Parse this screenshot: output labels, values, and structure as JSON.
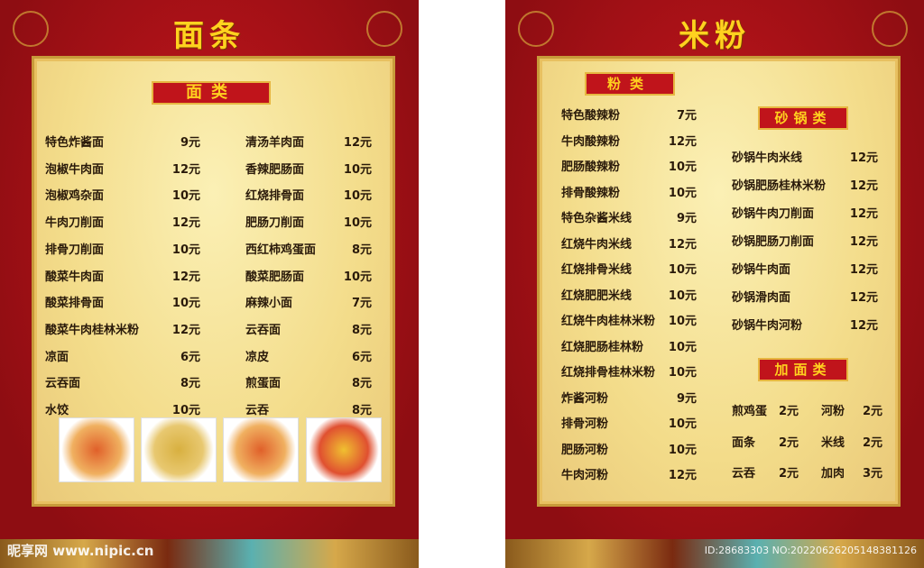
{
  "left": {
    "title": "面条",
    "section": "面类",
    "col1": [
      [
        "特色炸酱面",
        "9元"
      ],
      [
        "泡椒牛肉面",
        "12元"
      ],
      [
        "泡椒鸡杂面",
        "10元"
      ],
      [
        "牛肉刀削面",
        "12元"
      ],
      [
        "排骨刀削面",
        "10元"
      ],
      [
        "酸菜牛肉面",
        "12元"
      ],
      [
        "酸菜排骨面",
        "10元"
      ],
      [
        "酸菜牛肉桂林米粉",
        "12元"
      ],
      [
        "凉面",
        "6元"
      ],
      [
        "云吞面",
        "8元"
      ],
      [
        "水饺",
        "10元"
      ]
    ],
    "col2": [
      [
        "清汤羊肉面",
        "12元"
      ],
      [
        "香辣肥肠面",
        "10元"
      ],
      [
        "红烧排骨面",
        "10元"
      ],
      [
        "肥肠刀削面",
        "10元"
      ],
      [
        "西红柿鸡蛋面",
        "8元"
      ],
      [
        "酸菜肥肠面",
        "10元"
      ],
      [
        "麻辣小面",
        "7元"
      ],
      [
        "云吞面",
        "8元"
      ],
      [
        "凉皮",
        "6元"
      ],
      [
        "煎蛋面",
        "8元"
      ],
      [
        "云吞",
        "8元"
      ]
    ]
  },
  "right": {
    "title": "米粉",
    "section1": "粉类",
    "section2": "砂锅类",
    "section3": "加面类",
    "fen": [
      [
        "特色酸辣粉",
        "7元"
      ],
      [
        "牛肉酸辣粉",
        "12元"
      ],
      [
        "肥肠酸辣粉",
        "10元"
      ],
      [
        "排骨酸辣粉",
        "10元"
      ],
      [
        "特色杂酱米线",
        "9元"
      ],
      [
        "红烧牛肉米线",
        "12元"
      ],
      [
        "红烧排骨米线",
        "10元"
      ],
      [
        "红烧肥肥米线",
        "10元"
      ],
      [
        "红烧牛肉桂林米粉",
        "10元"
      ],
      [
        "红烧肥肠桂林粉",
        "10元"
      ],
      [
        "红烧排骨桂林米粉",
        "10元"
      ],
      [
        "炸酱河粉",
        "9元"
      ],
      [
        "排骨河粉",
        "10元"
      ],
      [
        "肥肠河粉",
        "10元"
      ],
      [
        "牛肉河粉",
        "12元"
      ]
    ],
    "shaguo": [
      [
        "砂锅牛肉米线",
        "12元"
      ],
      [
        "砂锅肥肠桂林米粉",
        "12元"
      ],
      [
        "砂锅牛肉刀削面",
        "12元"
      ],
      [
        "砂锅肥肠刀削面",
        "12元"
      ],
      [
        "砂锅牛肉面",
        "12元"
      ],
      [
        "砂锅滑肉面",
        "12元"
      ],
      [
        "砂锅牛肉河粉",
        "12元"
      ]
    ],
    "addons": [
      [
        "煎鸡蛋",
        "2元",
        "河粉",
        "2元"
      ],
      [
        "面条",
        "2元",
        "米线",
        "2元"
      ],
      [
        "云吞",
        "2元",
        "加肉",
        "3元"
      ]
    ]
  },
  "watermark": {
    "left": "昵享网 www.nipic.cn",
    "right": "ID:28683303 NO:20220626205148381126"
  },
  "colors": {
    "background": "#c0141b",
    "panel": "#f6e29a",
    "title": "#ffd21f"
  }
}
